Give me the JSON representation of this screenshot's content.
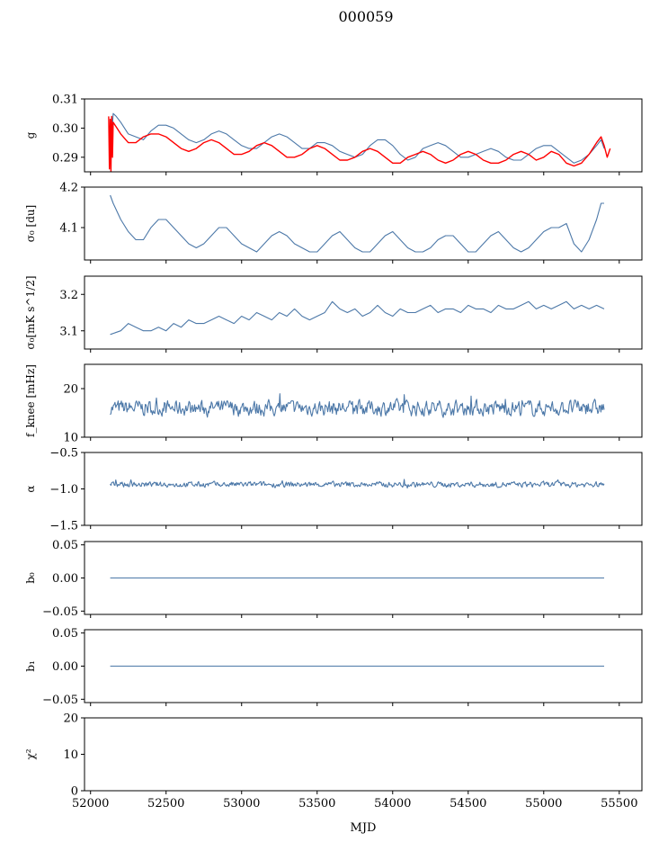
{
  "title": "000059",
  "colors": {
    "blue": "#4c78a8",
    "red": "#ff0000",
    "axis": "#000000"
  },
  "x_axis": {
    "label": "MJD",
    "lim": [
      51960,
      55650
    ],
    "ticks": [
      52000,
      52500,
      53000,
      53500,
      54000,
      54500,
      55000,
      55500
    ],
    "tick_labels": [
      "52000",
      "52500",
      "53000",
      "53500",
      "54000",
      "54500",
      "55000",
      "55500"
    ]
  },
  "chart_data": [
    {
      "type": "line",
      "ylabel": "g",
      "ylim": [
        0.285,
        0.31
      ],
      "yticks": [
        0.29,
        0.3,
        0.31
      ],
      "ytick_labels": [
        "0.29",
        "0.30",
        "0.31"
      ],
      "series": [
        {
          "color": "#4c78a8",
          "x": [
            52130,
            52150,
            52170,
            52200,
            52250,
            52300,
            52350,
            52400,
            52450,
            52500,
            52550,
            52600,
            52650,
            52700,
            52750,
            52800,
            52850,
            52900,
            52950,
            53000,
            53050,
            53100,
            53150,
            53200,
            53250,
            53300,
            53350,
            53400,
            53450,
            53500,
            53550,
            53600,
            53650,
            53700,
            53750,
            53800,
            53850,
            53900,
            53950,
            54000,
            54050,
            54100,
            54150,
            54200,
            54250,
            54300,
            54350,
            54400,
            54450,
            54500,
            54550,
            54600,
            54650,
            54700,
            54750,
            54800,
            54850,
            54900,
            54950,
            55000,
            55050,
            55100,
            55150,
            55200,
            55250,
            55300,
            55350,
            55380,
            55400
          ],
          "y": [
            0.289,
            0.305,
            0.304,
            0.302,
            0.298,
            0.297,
            0.296,
            0.299,
            0.301,
            0.301,
            0.3,
            0.298,
            0.296,
            0.295,
            0.296,
            0.298,
            0.299,
            0.298,
            0.296,
            0.294,
            0.293,
            0.293,
            0.295,
            0.297,
            0.298,
            0.297,
            0.295,
            0.293,
            0.293,
            0.295,
            0.295,
            0.294,
            0.292,
            0.291,
            0.29,
            0.291,
            0.294,
            0.296,
            0.296,
            0.294,
            0.291,
            0.289,
            0.29,
            0.293,
            0.294,
            0.295,
            0.294,
            0.292,
            0.29,
            0.29,
            0.291,
            0.292,
            0.293,
            0.292,
            0.29,
            0.289,
            0.289,
            0.291,
            0.293,
            0.294,
            0.294,
            0.292,
            0.29,
            0.288,
            0.289,
            0.291,
            0.294,
            0.296,
            0.293
          ]
        },
        {
          "color": "#ff0000",
          "x": [
            52120,
            52125,
            52130,
            52135,
            52140,
            52145,
            52150,
            52175,
            52200,
            52250,
            52300,
            52350,
            52400,
            52450,
            52500,
            52550,
            52600,
            52650,
            52700,
            52750,
            52800,
            52850,
            52900,
            52950,
            53000,
            53050,
            53100,
            53150,
            53200,
            53250,
            53300,
            53350,
            53400,
            53450,
            53500,
            53550,
            53600,
            53650,
            53700,
            53750,
            53800,
            53850,
            53900,
            53950,
            54000,
            54050,
            54100,
            54150,
            54200,
            54250,
            54300,
            54350,
            54400,
            54450,
            54500,
            54550,
            54600,
            54650,
            54700,
            54750,
            54800,
            54850,
            54900,
            54950,
            55000,
            55050,
            55100,
            55150,
            55200,
            55250,
            55300,
            55350,
            55380,
            55400,
            55420,
            55440
          ],
          "y": [
            0.304,
            0.286,
            0.303,
            0.285,
            0.304,
            0.29,
            0.302,
            0.3,
            0.298,
            0.295,
            0.295,
            0.297,
            0.298,
            0.298,
            0.297,
            0.295,
            0.293,
            0.292,
            0.293,
            0.295,
            0.296,
            0.295,
            0.293,
            0.291,
            0.291,
            0.292,
            0.294,
            0.295,
            0.294,
            0.292,
            0.29,
            0.29,
            0.291,
            0.293,
            0.294,
            0.293,
            0.291,
            0.289,
            0.289,
            0.29,
            0.292,
            0.293,
            0.292,
            0.29,
            0.288,
            0.288,
            0.29,
            0.291,
            0.292,
            0.291,
            0.289,
            0.288,
            0.289,
            0.291,
            0.292,
            0.291,
            0.289,
            0.288,
            0.288,
            0.289,
            0.291,
            0.292,
            0.291,
            0.289,
            0.29,
            0.292,
            0.291,
            0.288,
            0.287,
            0.288,
            0.291,
            0.295,
            0.297,
            0.294,
            0.29,
            0.293
          ]
        }
      ]
    },
    {
      "type": "line",
      "ylabel": "σ₀ [du]",
      "ylim": [
        4.02,
        4.2
      ],
      "yticks": [
        4.1,
        4.2
      ],
      "ytick_labels": [
        "4.1",
        "4.2"
      ],
      "series": [
        {
          "color": "#4c78a8",
          "x": [
            52130,
            52150,
            52200,
            52250,
            52300,
            52350,
            52400,
            52450,
            52500,
            52550,
            52600,
            52650,
            52700,
            52750,
            52800,
            52850,
            52900,
            52950,
            53000,
            53050,
            53100,
            53150,
            53200,
            53250,
            53300,
            53350,
            53400,
            53450,
            53500,
            53550,
            53600,
            53650,
            53700,
            53750,
            53800,
            53850,
            53900,
            53950,
            54000,
            54050,
            54100,
            54150,
            54200,
            54250,
            54300,
            54350,
            54400,
            54450,
            54500,
            54550,
            54600,
            54650,
            54700,
            54750,
            54800,
            54850,
            54900,
            54950,
            55000,
            55050,
            55100,
            55150,
            55200,
            55250,
            55300,
            55350,
            55380,
            55400
          ],
          "y": [
            4.18,
            4.16,
            4.12,
            4.09,
            4.07,
            4.07,
            4.1,
            4.12,
            4.12,
            4.1,
            4.08,
            4.06,
            4.05,
            4.06,
            4.08,
            4.1,
            4.1,
            4.08,
            4.06,
            4.05,
            4.04,
            4.06,
            4.08,
            4.09,
            4.08,
            4.06,
            4.05,
            4.04,
            4.04,
            4.06,
            4.08,
            4.09,
            4.07,
            4.05,
            4.04,
            4.04,
            4.06,
            4.08,
            4.09,
            4.07,
            4.05,
            4.04,
            4.04,
            4.05,
            4.07,
            4.08,
            4.08,
            4.06,
            4.04,
            4.04,
            4.06,
            4.08,
            4.09,
            4.07,
            4.05,
            4.04,
            4.05,
            4.07,
            4.09,
            4.1,
            4.1,
            4.11,
            4.06,
            4.04,
            4.07,
            4.12,
            4.16,
            4.16
          ]
        }
      ]
    },
    {
      "type": "line",
      "ylabel": "σ₀[mK s^1/2]",
      "ylim": [
        3.05,
        3.25
      ],
      "yticks": [
        3.1,
        3.2
      ],
      "ytick_labels": [
        "3.1",
        "3.2"
      ],
      "series": [
        {
          "color": "#4c78a8",
          "x": [
            52130,
            52200,
            52250,
            52300,
            52350,
            52400,
            52450,
            52500,
            52550,
            52600,
            52650,
            52700,
            52750,
            52800,
            52850,
            52900,
            52950,
            53000,
            53050,
            53100,
            53150,
            53200,
            53250,
            53300,
            53350,
            53400,
            53450,
            53500,
            53550,
            53600,
            53650,
            53700,
            53750,
            53800,
            53850,
            53900,
            53950,
            54000,
            54050,
            54100,
            54150,
            54200,
            54250,
            54300,
            54350,
            54400,
            54450,
            54500,
            54550,
            54600,
            54650,
            54700,
            54750,
            54800,
            54850,
            54900,
            54950,
            55000,
            55050,
            55100,
            55150,
            55200,
            55250,
            55300,
            55350,
            55400
          ],
          "y": [
            3.09,
            3.1,
            3.12,
            3.11,
            3.1,
            3.1,
            3.11,
            3.1,
            3.12,
            3.11,
            3.13,
            3.12,
            3.12,
            3.13,
            3.14,
            3.13,
            3.12,
            3.14,
            3.13,
            3.15,
            3.14,
            3.13,
            3.15,
            3.14,
            3.16,
            3.14,
            3.13,
            3.14,
            3.15,
            3.18,
            3.16,
            3.15,
            3.16,
            3.14,
            3.15,
            3.17,
            3.15,
            3.14,
            3.16,
            3.15,
            3.15,
            3.16,
            3.17,
            3.15,
            3.16,
            3.16,
            3.15,
            3.17,
            3.16,
            3.16,
            3.15,
            3.17,
            3.16,
            3.16,
            3.17,
            3.18,
            3.16,
            3.17,
            3.16,
            3.17,
            3.18,
            3.16,
            3.17,
            3.16,
            3.17,
            3.16
          ]
        }
      ]
    },
    {
      "type": "line",
      "ylabel": "f_knee [mHz]",
      "ylim": [
        10,
        25
      ],
      "yticks": [
        10,
        20
      ],
      "ytick_labels": [
        "10",
        "20"
      ],
      "series": [
        {
          "color": "#4c78a8",
          "x_range": [
            52130,
            55400
          ],
          "center": 16,
          "amplitude": 2.5
        }
      ]
    },
    {
      "type": "line",
      "ylabel": "α",
      "ylim": [
        -1.5,
        -0.5
      ],
      "yticks": [
        -1.5,
        -1.0,
        -0.5
      ],
      "ytick_labels": [
        "−1.5",
        "−1.0",
        "−0.5"
      ],
      "series": [
        {
          "color": "#4c78a8",
          "x_range": [
            52130,
            55400
          ],
          "center": -0.94,
          "amplitude": 0.06
        }
      ]
    },
    {
      "type": "line",
      "ylabel": "b₀",
      "ylim": [
        -0.055,
        0.055
      ],
      "yticks": [
        -0.05,
        0.0,
        0.05
      ],
      "ytick_labels": [
        "−0.05",
        "0.00",
        "0.05"
      ],
      "series": [
        {
          "color": "#4c78a8",
          "x": [
            52130,
            55400
          ],
          "y": [
            0,
            0
          ]
        }
      ]
    },
    {
      "type": "line",
      "ylabel": "b₁",
      "ylim": [
        -0.055,
        0.055
      ],
      "yticks": [
        -0.05,
        0.0,
        0.05
      ],
      "ytick_labels": [
        "−0.05",
        "0.00",
        "0.05"
      ],
      "series": [
        {
          "color": "#4c78a8",
          "x": [
            52130,
            55400
          ],
          "y": [
            0,
            0
          ]
        }
      ]
    },
    {
      "type": "line",
      "ylabel": "χ²",
      "ylim": [
        0,
        20
      ],
      "yticks": [
        0,
        10,
        20
      ],
      "ytick_labels": [
        "0",
        "10",
        "20"
      ],
      "series": [
        {
          "color": "#4c78a8",
          "x": [
            52130,
            55400
          ],
          "y": [
            0,
            0
          ]
        }
      ]
    }
  ]
}
